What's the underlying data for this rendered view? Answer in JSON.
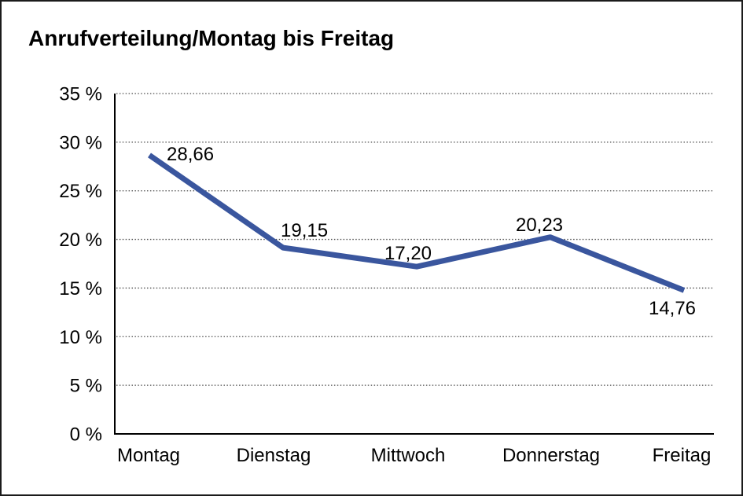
{
  "title": "Anrufverteilung/Montag bis Freitag",
  "chart_data": {
    "type": "line",
    "title": "Anrufverteilung/Montag bis Freitag",
    "categories": [
      "Montag",
      "Dienstag",
      "Mittwoch",
      "Donnerstag",
      "Freitag"
    ],
    "values": [
      28.66,
      19.15,
      17.2,
      20.23,
      14.76
    ],
    "point_labels": [
      "28,66",
      "19,15",
      "17,20",
      "20,23",
      "14,76"
    ],
    "xlabel": "",
    "ylabel": "",
    "ylim": [
      0,
      35
    ],
    "ytick_step": 5,
    "ytick_labels": [
      "0 %",
      "5 %",
      "10 %",
      "15 %",
      "20 %",
      "25 %",
      "30 %",
      "35 %"
    ],
    "grid": "horizontal-dotted",
    "legend": "none",
    "line_color": "#3A569E",
    "grid_color": "#4d4d4d",
    "axis_color": "#000000",
    "text_color": "#000000",
    "background": "#ffffff"
  }
}
